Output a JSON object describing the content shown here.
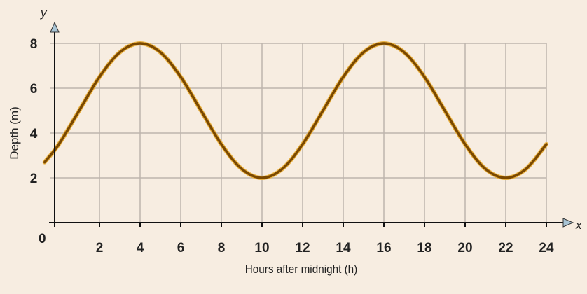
{
  "chart_data": {
    "type": "line",
    "title": "",
    "xlabel": "Hours after midnight (h)",
    "ylabel": "Depth (m)",
    "x_axis_symbol": "x",
    "y_axis_symbol": "y",
    "origin_label": "0",
    "xlim": [
      0,
      24
    ],
    "ylim": [
      0,
      8
    ],
    "xticks": [
      2,
      4,
      6,
      8,
      10,
      12,
      14,
      16,
      18,
      20,
      22,
      24
    ],
    "yticks": [
      2,
      4,
      6,
      8
    ],
    "grid": true,
    "series": [
      {
        "x": [
          -0.7,
          0,
          1,
          2,
          3,
          4,
          5,
          6,
          7,
          8,
          9,
          10,
          11,
          12,
          13,
          14,
          15,
          16,
          17,
          18,
          19,
          20,
          21,
          22,
          23,
          24
        ],
        "y": [
          2.7,
          3.5,
          5,
          6.5,
          7.6,
          8,
          7.6,
          6.5,
          5,
          3.5,
          2.4,
          2,
          2.4,
          3.5,
          5,
          6.5,
          7.6,
          8,
          7.6,
          6.5,
          5,
          3.5,
          2.4,
          2,
          2.4,
          3.5
        ]
      }
    ],
    "colors": {
      "curve": "#7a4800",
      "curve_glow": "#e8b040",
      "grid": "#bdb5ad",
      "axis": "#111111",
      "arrow": "#a8c4d4",
      "background": "#f7ede1"
    }
  }
}
